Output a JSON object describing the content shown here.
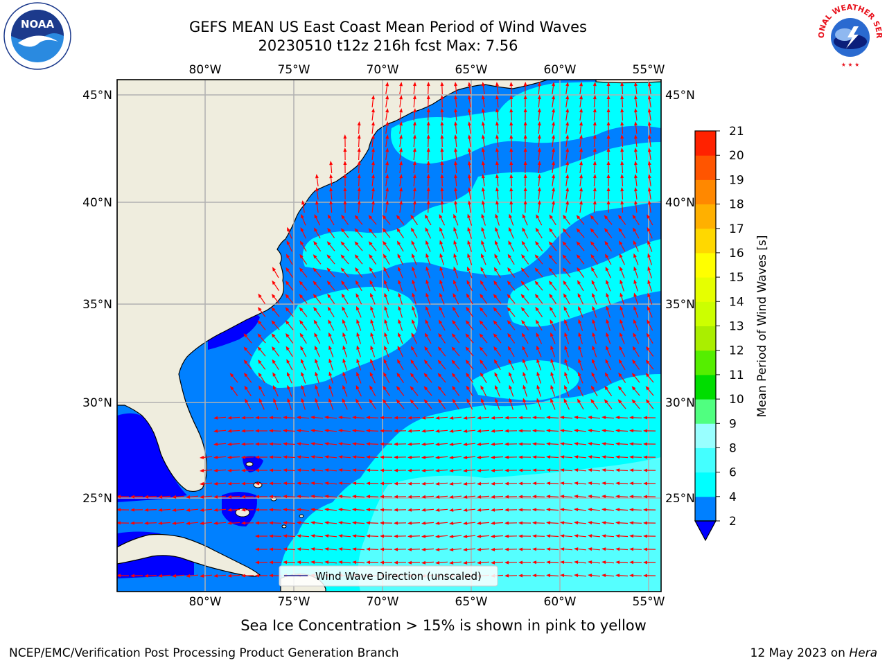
{
  "title": {
    "line1": "GEFS MEAN US East Coast Mean Period of Wind Waves",
    "line2": "20230510 t12z 216h fcst   Max: 7.56"
  },
  "logos": {
    "left": {
      "icon": "noaa-logo",
      "text": "NOAA"
    },
    "right": {
      "icon": "nws-logo",
      "text": "NATIONAL WEATHER SERVICE"
    }
  },
  "map": {
    "lon_ticks": [
      "80°W",
      "75°W",
      "70°W",
      "65°W",
      "60°W",
      "55°W"
    ],
    "lat_ticks": [
      "45°N",
      "40°N",
      "35°N",
      "30°N",
      "25°N"
    ],
    "lon_range": [
      -85,
      -54.4
    ],
    "lat_range": [
      20.5,
      45.8
    ],
    "legend_label": "Wind Wave Direction (unscaled)",
    "colors": {
      "land": "#efedde",
      "coast": "#000000",
      "grid": "#b0b0b0",
      "arrow": "#ff0000",
      "band_2_4": "#0080ff",
      "band_4_6": "#00ffff",
      "band_lt2": "#0000ff",
      "band_6_8": "#55ffff"
    }
  },
  "colorbar": {
    "label": "Mean Period of Wind Waves [s]",
    "ticks": [
      "2",
      "4",
      "6",
      "8",
      "9",
      "10",
      "11",
      "12",
      "13",
      "14",
      "15",
      "16",
      "17",
      "18",
      "19",
      "20",
      "21"
    ],
    "colors": [
      "#0080ff",
      "#00ffff",
      "#44ffff",
      "#99ffff",
      "#50ff80",
      "#00dd00",
      "#55ee00",
      "#aaee00",
      "#ccff00",
      "#e6ff00",
      "#ffff00",
      "#ffd800",
      "#ffb000",
      "#ff8800",
      "#ff5500",
      "#ff2200"
    ],
    "under_color": "#0000ff",
    "top_color": "#ff0000"
  },
  "notes": {
    "ice": "Sea Ice Concentration > 15% is shown in pink to yellow"
  },
  "footer": {
    "credit": "NCEP/EMC/Verification Post Processing Product Generation Branch",
    "date": "12 May 2023 on",
    "machine": "Hera"
  }
}
